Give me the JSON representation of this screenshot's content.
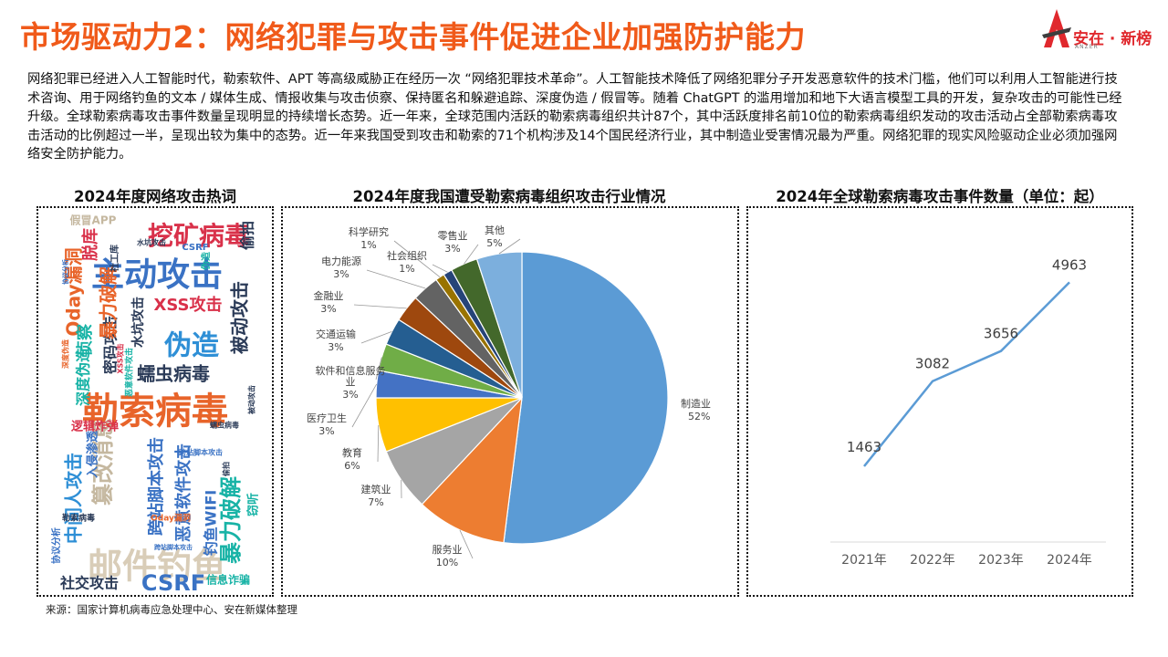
{
  "slide": {
    "title": "市场驱动力2：网络犯罪与攻击事件促进企业加强防护能力",
    "intro": "网络犯罪已经进入人工智能时代，勒索软件、APT 等高级威胁正在经历一次 “网络犯罪技术革命”。人工智能技术降低了网络犯罪分子开发恶意软件的技术门槛，他们可以利用人工智能进行技术咨询、用于网络钓鱼的文本 / 媒体生成、情报收集与攻击侦察、保持匿名和躲避追踪、深度伪造 / 假冒等。随着 ChatGPT 的滥用增加和地下大语言模型工具的开发，复杂攻击的可能性已经升级。全球勒索病毒攻击事件数量呈现明显的持续增长态势。近一年来，全球范围内活跃的勒索病毒组织共计87个，其中活跃度排名前10位的勒索病毒组织发动的攻击活动占全部勒索病毒攻击活动的比例超过一半，呈现出较为集中的态势。近一年来我国受到攻击和勒索的71个机构涉及14个国民经济行业，其中制造业受害情况最为严重。网络犯罪的现实风险驱动企业必须加强网络安全防护能力。",
    "source": "来源：国家计算机病毒应急处理中心、安在新媒体整理"
  },
  "logo": {
    "text": "安在 · 新榜",
    "sub": "ANZER",
    "color": "#e0282d"
  },
  "colors": {
    "title": "#f05a1a"
  },
  "panels": {
    "wordcloud_title": "2024年度网络攻击热词",
    "pie_title": "2024年度我国遭受勒索病毒组织攻击行业情况",
    "line_title": "2024年全球勒索病毒攻击事件数量（单位：起）"
  },
  "wordcloud": [
    {
      "text": "勒索病毒",
      "color": "#e8642a"
    },
    {
      "text": "邮件钓鱼",
      "color": "#d9cdb8"
    },
    {
      "text": "主动攻击",
      "color": "#3a72c4"
    },
    {
      "text": "挖矿病毒",
      "color": "#d9314a"
    },
    {
      "text": "伪造",
      "color": "#2e8fd6"
    },
    {
      "text": "CSRF",
      "color": "#3a72c4"
    },
    {
      "text": "暴力破解",
      "color": "#18b3a6"
    },
    {
      "text": "社交攻击",
      "color": "#2b3b58"
    },
    {
      "text": "XSS攻击",
      "color": "#d9314a"
    },
    {
      "text": "蠕虫病毒",
      "color": "#2b3b58"
    },
    {
      "text": "Oday漏洞",
      "color": "#e8642a"
    },
    {
      "text": "中间人攻击",
      "color": "#2e8fd6"
    },
    {
      "text": "跨站脚本攻击",
      "color": "#3a72c4"
    },
    {
      "text": "恶意软件攻击",
      "color": "#3a72c4"
    },
    {
      "text": "篡改消息",
      "color": "#c5b8a0"
    },
    {
      "text": "被动攻击",
      "color": "#2b3b58"
    },
    {
      "text": "密码攻击",
      "color": "#2b3b58"
    },
    {
      "text": "侦察",
      "color": "#18b3a6"
    },
    {
      "text": "深度伪造",
      "color": "#18b3a6"
    },
    {
      "text": "偷拍",
      "color": "#2b3b58"
    },
    {
      "text": "水坑攻击",
      "color": "#2b3b58"
    },
    {
      "text": "钓鱼WIFI",
      "color": "#3a72c4"
    },
    {
      "text": "逻辑炸弹",
      "color": "#d9314a"
    },
    {
      "text": "勒索病毒",
      "color": "#2b3b58"
    },
    {
      "text": "信息诈骗",
      "color": "#18b3a6"
    },
    {
      "text": "协议分析",
      "color": "#3a72c4"
    },
    {
      "text": "脱库",
      "color": "#d9314a"
    },
    {
      "text": "假冒APP",
      "color": "#c5b8a0"
    },
    {
      "text": "入侵渗透",
      "color": "#3a72c4"
    },
    {
      "text": "Oday漏洞",
      "color": "#e8642a"
    },
    {
      "text": "窃听",
      "color": "#18b3a6"
    },
    {
      "text": "暴力破解",
      "color": "#e8642a"
    },
    {
      "text": "蠕虫病毒",
      "color": "#2b3b58"
    },
    {
      "text": "社工库",
      "color": "#2b3b58"
    },
    {
      "text": "CSRF",
      "color": "#3a72c4"
    },
    {
      "text": "深度伪造",
      "color": "#e8642a"
    },
    {
      "text": "恶意软件攻击",
      "color": "#18b3a6"
    },
    {
      "text": "伪造",
      "color": "#18b3a6"
    },
    {
      "text": "XSS攻击",
      "color": "#d9314a"
    },
    {
      "text": "被动攻击",
      "color": "#2b3b58"
    },
    {
      "text": "水坑攻击",
      "color": "#2b3b58"
    },
    {
      "text": "跨站脚本攻击",
      "color": "#3a72c4"
    },
    {
      "text": "偷拍",
      "color": "#2b3b58"
    },
    {
      "text": "跨站脚本攻击",
      "color": "#3a72c4"
    },
    {
      "text": "协议分析",
      "color": "#3a72c4"
    }
  ],
  "chart_data": [
    {
      "type": "pie",
      "title": "2024年度我国遭受勒索病毒组织攻击行业情况",
      "slices": [
        {
          "label": "制造业",
          "value": 52,
          "display": "52%",
          "color": "#5b9bd5"
        },
        {
          "label": "服务业",
          "value": 10,
          "display": "10%",
          "color": "#ed7d31"
        },
        {
          "label": "建筑业",
          "value": 7,
          "display": "7%",
          "color": "#a5a5a5"
        },
        {
          "label": "教育",
          "value": 6,
          "display": "6%",
          "color": "#ffc000"
        },
        {
          "label": "医疗卫生",
          "value": 3,
          "display": "3%",
          "color": "#4472c4"
        },
        {
          "label": "软件和信息服务业",
          "value": 3,
          "display": "3%",
          "color": "#70ad47"
        },
        {
          "label": "交通运输",
          "value": 3,
          "display": "3%",
          "color": "#255e91"
        },
        {
          "label": "金融业",
          "value": 3,
          "display": "3%",
          "color": "#9e480e"
        },
        {
          "label": "电力能源",
          "value": 3,
          "display": "3%",
          "color": "#636363"
        },
        {
          "label": "科学研究",
          "value": 1,
          "display": "1%",
          "color": "#997300"
        },
        {
          "label": "社会组织",
          "value": 1,
          "display": "1%",
          "color": "#264478"
        },
        {
          "label": "零售业",
          "value": 3,
          "display": "3%",
          "color": "#43682b"
        },
        {
          "label": "其他",
          "value": 5,
          "display": "5%",
          "color": "#7cafdd"
        }
      ]
    },
    {
      "type": "line",
      "title": "2024年全球勒索病毒攻击事件数量（单位：起）",
      "categories": [
        "2021年",
        "2022年",
        "2023年",
        "2024年"
      ],
      "values": [
        1463,
        3082,
        3656,
        4963
      ],
      "color": "#5b9bd5",
      "grid": false
    }
  ]
}
